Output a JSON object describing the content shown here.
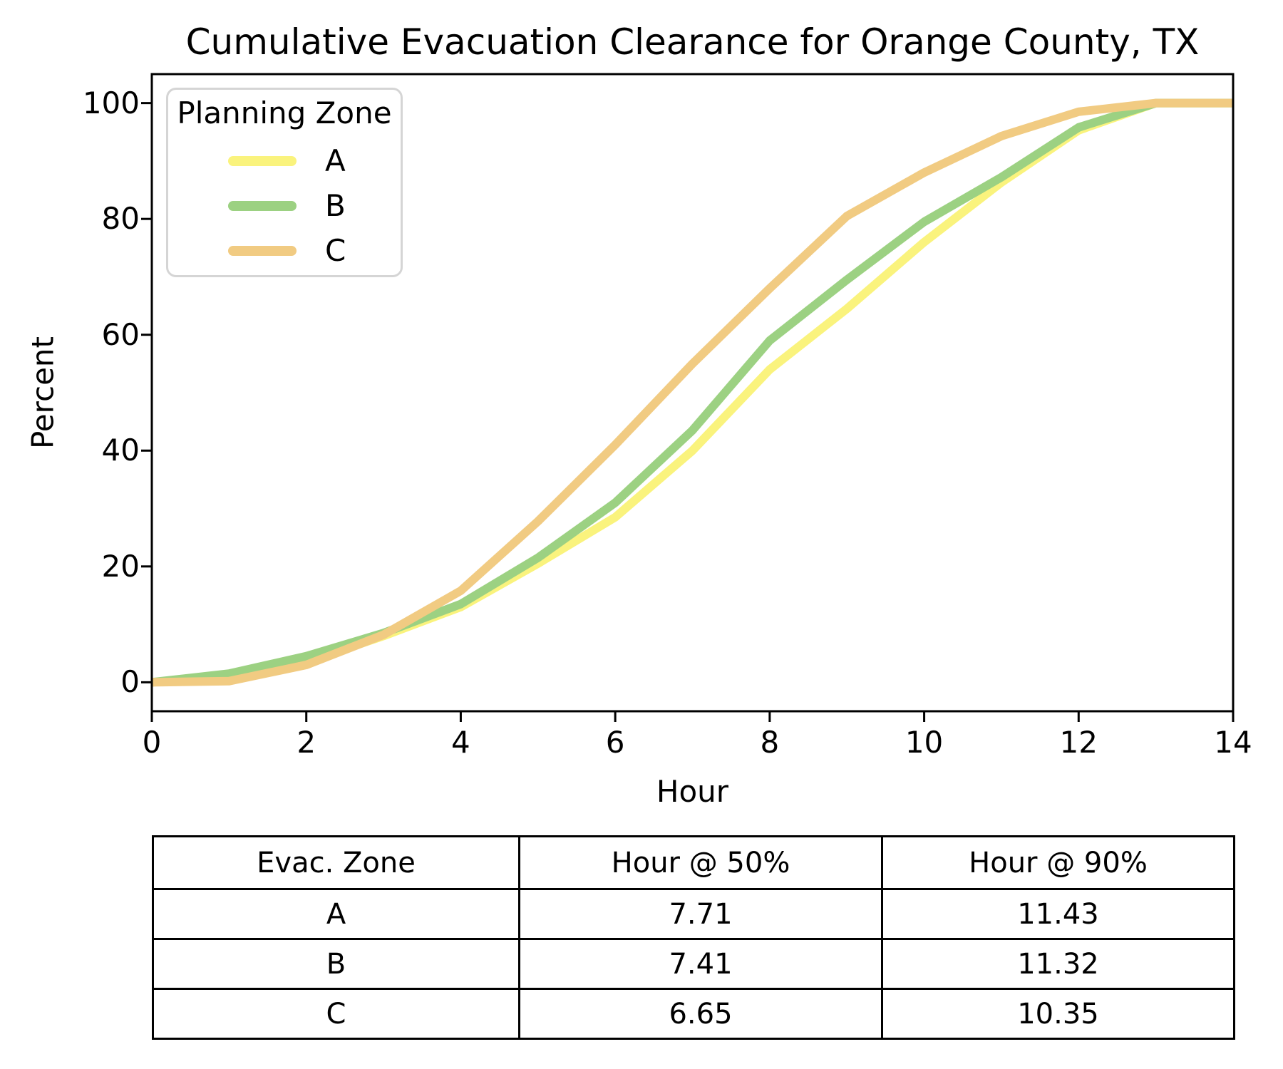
{
  "chart_data": {
    "type": "line",
    "title": "Cumulative Evacuation Clearance for Orange County, TX",
    "xlabel": "Hour",
    "ylabel": "Percent",
    "xlim": [
      0,
      14
    ],
    "ylim": [
      -5,
      105
    ],
    "xticks": [
      0,
      2,
      4,
      6,
      8,
      10,
      12,
      14
    ],
    "yticks": [
      0,
      20,
      40,
      60,
      80,
      100
    ],
    "grid": false,
    "legend_title": "Planning Zone",
    "legend_position": "upper left",
    "line_width": 12,
    "x": [
      0,
      1,
      2,
      3,
      4,
      5,
      6,
      7,
      8,
      9,
      10,
      11,
      12,
      13,
      14
    ],
    "series": [
      {
        "name": "A",
        "color": "#FAF37D",
        "values": [
          0,
          1,
          3.5,
          8,
          13,
          20.5,
          28.5,
          40,
          54,
          64.5,
          76,
          86.3,
          95.3,
          100,
          100
        ]
      },
      {
        "name": "B",
        "color": "#9CD182",
        "values": [
          0,
          1.5,
          4.5,
          8.5,
          13.5,
          21.5,
          31,
          43.5,
          59,
          69.5,
          79.5,
          87.2,
          95.8,
          100,
          100
        ]
      },
      {
        "name": "C",
        "color": "#F1CB82",
        "values": [
          0,
          0.2,
          3,
          8.2,
          15.8,
          27.8,
          41,
          55,
          68,
          80.5,
          88,
          94.3,
          98.5,
          100,
          100
        ]
      }
    ]
  },
  "table": {
    "headers": [
      "Evac. Zone",
      "Hour @ 50%",
      "Hour @ 90%"
    ],
    "rows": [
      [
        "A",
        "7.71",
        "11.43"
      ],
      [
        "B",
        "7.41",
        "11.32"
      ],
      [
        "C",
        "6.65",
        "10.35"
      ]
    ]
  }
}
